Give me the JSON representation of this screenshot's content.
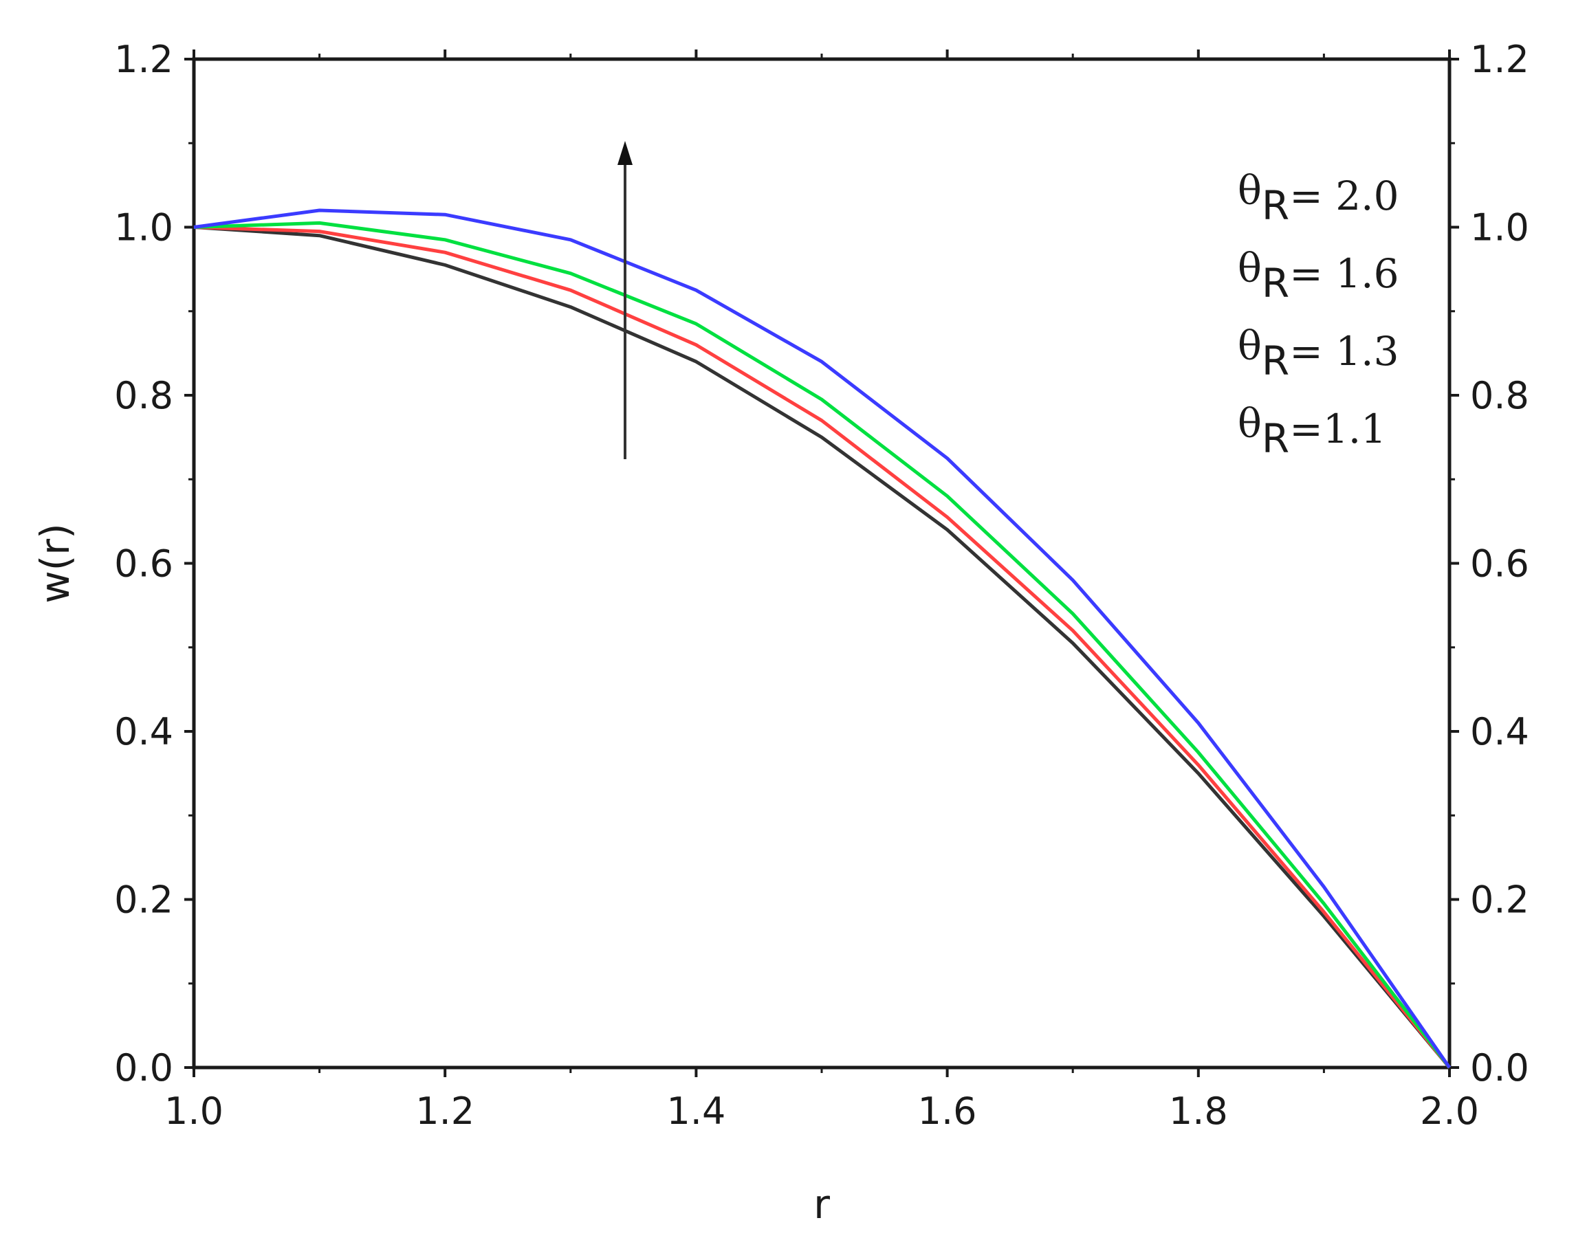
{
  "chart_data": {
    "type": "line",
    "xlabel": "r",
    "ylabel": "w(r)",
    "xlim": [
      1.0,
      2.0
    ],
    "ylim": [
      0.0,
      1.2
    ],
    "x_ticks": [
      "1.0",
      "1.2",
      "1.4",
      "1.6",
      "1.8",
      "2.0"
    ],
    "y_ticks": [
      "0.0",
      "0.2",
      "0.4",
      "0.6",
      "0.8",
      "1.0",
      "1.2"
    ],
    "x_tick_values": [
      1.0,
      1.2,
      1.4,
      1.6,
      1.8,
      2.0
    ],
    "y_tick_values": [
      0.0,
      0.2,
      0.4,
      0.6,
      0.8,
      1.0,
      1.2
    ],
    "grid": false,
    "right_axis_mirrored": true,
    "legend_position": "top-right",
    "annotation": "arrow pointing up (increasing θR)",
    "x": [
      1.0,
      1.1,
      1.2,
      1.3,
      1.4,
      1.5,
      1.6,
      1.7,
      1.8,
      1.9,
      2.0
    ],
    "series": [
      {
        "legend_symbol": "θ",
        "legend_sub": "R",
        "legend_value": "= 2.0",
        "color": "#3b3bff",
        "values": [
          1.0,
          1.02,
          1.015,
          0.985,
          0.925,
          0.84,
          0.725,
          0.58,
          0.41,
          0.215,
          0.0
        ]
      },
      {
        "legend_symbol": "θ",
        "legend_sub": "R",
        "legend_value": "= 1.6",
        "color": "#00e040",
        "values": [
          1.0,
          1.005,
          0.985,
          0.945,
          0.885,
          0.795,
          0.68,
          0.54,
          0.375,
          0.195,
          0.0
        ]
      },
      {
        "legend_symbol": "θ",
        "legend_sub": "R",
        "legend_value": "= 1.3",
        "color": "#ff4040",
        "values": [
          1.0,
          0.995,
          0.97,
          0.925,
          0.86,
          0.77,
          0.655,
          0.52,
          0.36,
          0.185,
          0.0
        ]
      },
      {
        "legend_symbol": "θ",
        "legend_sub": "R",
        "legend_value": "=1.1",
        "color": "#333333",
        "values": [
          1.0,
          0.99,
          0.955,
          0.905,
          0.84,
          0.75,
          0.64,
          0.505,
          0.35,
          0.18,
          0.0
        ]
      }
    ]
  }
}
